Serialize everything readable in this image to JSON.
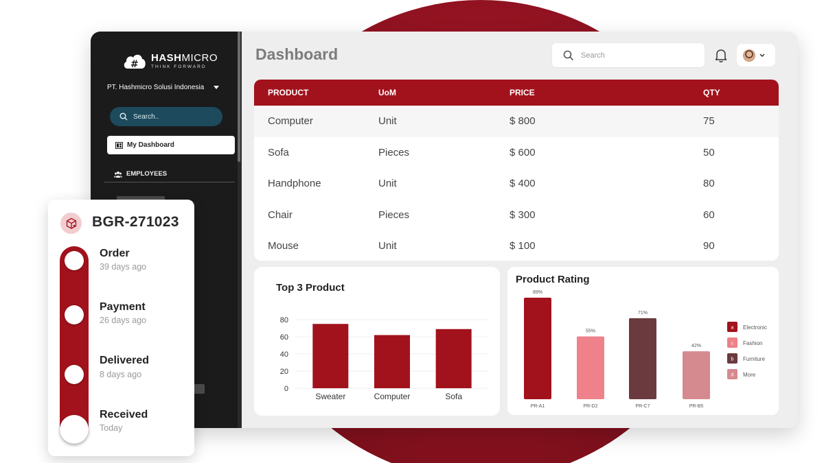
{
  "brand": {
    "logo_main": "HASH",
    "logo_main2": "MICRO",
    "tagline": "THINK FORWARD",
    "company": "PT. Hashmicro Solusi Indonesia"
  },
  "sidebar": {
    "search_placeholder": "Search..",
    "items": [
      {
        "label": "My Dashboard",
        "icon": "dashboard-icon",
        "active": true
      },
      {
        "label": "EMPLOYEES",
        "icon": "people-icon",
        "active": false
      }
    ]
  },
  "header": {
    "title": "Dashboard",
    "search_placeholder": "Search"
  },
  "table": {
    "columns": [
      "PRODUCT",
      "UoM",
      "PRICE",
      "QTY"
    ],
    "rows": [
      {
        "product": "Computer",
        "uom": "Unit",
        "price": "$ 800",
        "qty": "75"
      },
      {
        "product": "Sofa",
        "uom": "Pieces",
        "price": "$ 600",
        "qty": "50"
      },
      {
        "product": "Handphone",
        "uom": "Unit",
        "price": "$ 400",
        "qty": "80"
      },
      {
        "product": "Chair",
        "uom": "Pieces",
        "price": "$ 300",
        "qty": "60"
      },
      {
        "product": "Mouse",
        "uom": "Unit",
        "price": "$ 100",
        "qty": "90"
      }
    ]
  },
  "chart_data": [
    {
      "type": "bar",
      "title": "Top 3 Product",
      "categories": [
        "Sweater",
        "Computer",
        "Sofa"
      ],
      "values": [
        75,
        62,
        69
      ],
      "yticks": [
        "0",
        "20",
        "40",
        "60",
        "80"
      ],
      "ylim": [
        0,
        80
      ],
      "color": "#a2121c"
    },
    {
      "type": "bar",
      "title": "Product Rating",
      "categories": [
        "PR-A1",
        "PR-D2",
        "PR-C7",
        "PR-B5"
      ],
      "values": [
        89,
        55,
        71,
        42
      ],
      "value_labels": [
        "89%",
        "55%",
        "71%",
        "42%"
      ],
      "colors": [
        "#a2121c",
        "#ee8189",
        "#6a3a3e",
        "#d58a8f"
      ],
      "ylim": [
        0,
        100
      ],
      "legend": [
        {
          "key": "a",
          "label": "Electronic",
          "color": "#a2121c"
        },
        {
          "key": "c",
          "label": "Fashion",
          "color": "#ee8189"
        },
        {
          "key": "b",
          "label": "Furniture",
          "color": "#6a3a3e"
        },
        {
          "key": "d",
          "label": "More",
          "color": "#d58a8f"
        }
      ],
      "legend_position": "right"
    }
  ],
  "tracking": {
    "code": "BGR-271023",
    "steps": [
      {
        "title": "Order",
        "time": "39 days ago"
      },
      {
        "title": "Payment",
        "time": "26 days ago"
      },
      {
        "title": "Delivered",
        "time": "8 days ago"
      },
      {
        "title": "Received",
        "time": "Today"
      }
    ]
  }
}
